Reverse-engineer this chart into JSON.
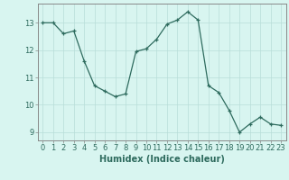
{
  "x": [
    0,
    1,
    2,
    3,
    4,
    5,
    6,
    7,
    8,
    9,
    10,
    11,
    12,
    13,
    14,
    15,
    16,
    17,
    18,
    19,
    20,
    21,
    22,
    23
  ],
  "y": [
    13.0,
    13.0,
    12.6,
    12.7,
    11.6,
    10.7,
    10.5,
    10.3,
    10.4,
    11.95,
    12.05,
    12.4,
    12.95,
    13.1,
    13.4,
    13.1,
    10.7,
    10.45,
    9.8,
    9.0,
    9.3,
    9.55,
    9.3,
    9.25
  ],
  "line_color": "#2e6b5e",
  "marker": "+",
  "marker_size": 3,
  "background_color": "#d8f5f0",
  "grid_color": "#b8ddd8",
  "xlabel": "Humidex (Indice chaleur)",
  "xlabel_fontsize": 7,
  "tick_fontsize": 6,
  "ylim": [
    8.7,
    13.7
  ],
  "xlim": [
    -0.5,
    23.5
  ],
  "yticks": [
    9,
    10,
    11,
    12,
    13
  ],
  "xticks": [
    0,
    1,
    2,
    3,
    4,
    5,
    6,
    7,
    8,
    9,
    10,
    11,
    12,
    13,
    14,
    15,
    16,
    17,
    18,
    19,
    20,
    21,
    22,
    23
  ]
}
